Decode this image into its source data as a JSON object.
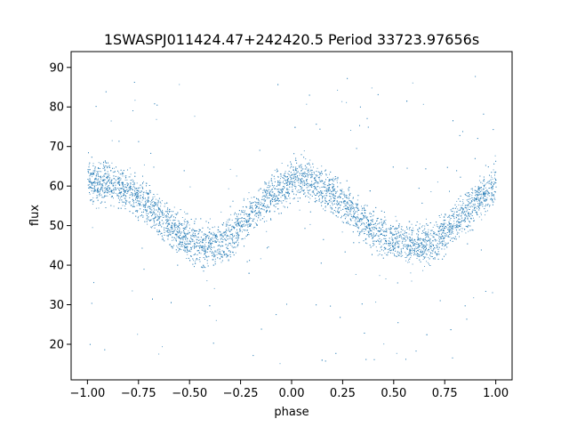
{
  "chart_data": {
    "type": "scatter",
    "title": "1SWASPJ011424.47+242420.5 Period 33723.97656s",
    "xlabel": "phase",
    "ylabel": "flux",
    "xlim": [
      -1.08,
      1.08
    ],
    "ylim": [
      11,
      94
    ],
    "x_ticks": [
      -1.0,
      -0.75,
      -0.5,
      -0.25,
      0.0,
      0.25,
      0.5,
      0.75,
      1.0
    ],
    "x_tick_labels": [
      "−1.00",
      "−0.75",
      "−0.50",
      "−0.25",
      "0.00",
      "0.25",
      "0.50",
      "0.75",
      "1.00"
    ],
    "y_ticks": [
      20,
      30,
      40,
      50,
      60,
      70,
      80,
      90
    ],
    "y_tick_labels": [
      "20",
      "30",
      "40",
      "50",
      "60",
      "70",
      "80",
      "90"
    ],
    "grid": false,
    "legend": "none",
    "point_color": "#1f77b4",
    "curve": {
      "description_values": "flux vs phase: sinusoid, mean 53, amplitude 9, maxima near phase -1.0, 0.05, 1.0; minima near -0.45, 0.6",
      "x": [
        -1.0,
        -0.9,
        -0.8,
        -0.7,
        -0.6,
        -0.5,
        -0.45,
        -0.4,
        -0.3,
        -0.2,
        -0.1,
        0.0,
        0.05,
        0.1,
        0.2,
        0.3,
        0.4,
        0.5,
        0.6,
        0.7,
        0.8,
        0.9,
        1.0
      ],
      "y": [
        61,
        61,
        59,
        55,
        50,
        46,
        45,
        45,
        47,
        53,
        58,
        61,
        62,
        61,
        58,
        54,
        49,
        46,
        45,
        46,
        51,
        56,
        61
      ],
      "scatter_spread": 3.5,
      "outlier_range": [
        15,
        88
      ]
    }
  }
}
